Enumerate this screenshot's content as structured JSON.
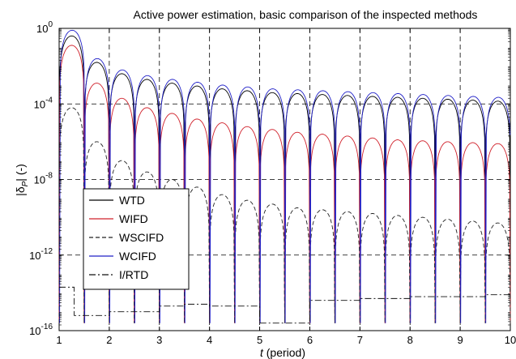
{
  "chart_data": {
    "type": "line",
    "title": "Active power estimation, basic comparison of the inspected methods",
    "xlabel_italic": "t",
    "xlabel_rest": " (period)",
    "ylabel_main": "|δ",
    "ylabel_sub": "P",
    "ylabel_rest": "| (-)",
    "xlim": [
      1,
      10
    ],
    "ylim_log10": [
      -16,
      0
    ],
    "yscale": "log",
    "grid": "dashed at major ticks",
    "x_ticks": [
      1,
      2,
      3,
      4,
      5,
      6,
      7,
      8,
      9,
      10
    ],
    "y_ticks": [
      {
        "exp": -16,
        "label_base": "10",
        "label_exp": "-16"
      },
      {
        "exp": -12,
        "label_base": "10",
        "label_exp": "-12"
      },
      {
        "exp": -8,
        "label_base": "10",
        "label_exp": "-8"
      },
      {
        "exp": -4,
        "label_base": "10",
        "label_exp": "-4"
      },
      {
        "exp": 0,
        "label_base": "10",
        "label_exp": "0"
      }
    ],
    "legend_placement": "lower-left",
    "series": [
      {
        "name": "WTD",
        "color": "#000000",
        "dash": "solid",
        "peaks_log10": [
          -0.4,
          -1.8,
          -2.4,
          -2.7,
          -2.9,
          -3.05,
          -3.2,
          -3.3,
          -3.4,
          -3.45,
          -3.5,
          -3.55,
          -3.6,
          -3.65,
          -3.7,
          -3.75,
          -3.8,
          -3.85
        ]
      },
      {
        "name": "WIFD",
        "color": "#d0202a",
        "dash": "solid",
        "peaks_log10": [
          -0.9,
          -2.9,
          -3.7,
          -4.2,
          -4.5,
          -4.8,
          -5.0,
          -5.2,
          -5.35,
          -5.5,
          -5.6,
          -5.7,
          -5.8,
          -5.9,
          -5.95,
          -6.0,
          -6.05,
          -6.1
        ]
      },
      {
        "name": "WSCIFD",
        "color": "#222222",
        "dash": "dashed",
        "peaks_log10": [
          -4.2,
          -6.0,
          -7.0,
          -7.6,
          -8.0,
          -8.4,
          -8.8,
          -9.1,
          -9.3,
          -9.5,
          -9.6,
          -9.7,
          -9.8,
          -9.9,
          -10.0,
          -10.1,
          -10.2,
          -10.3
        ]
      },
      {
        "name": "WCIFD",
        "color": "#2020c8",
        "dash": "solid",
        "peaks_log10": [
          -0.1,
          -1.6,
          -2.2,
          -2.5,
          -2.7,
          -2.85,
          -3.0,
          -3.1,
          -3.2,
          -3.25,
          -3.3,
          -3.35,
          -3.4,
          -3.45,
          -3.5,
          -3.55,
          -3.6,
          -3.65
        ]
      },
      {
        "name": "I/RTD",
        "color": "#111111",
        "dash": "dashdot",
        "steps": [
          [
            1.0,
            -13.7
          ],
          [
            1.3,
            -15.2
          ],
          [
            2.0,
            -15.0
          ],
          [
            3.0,
            -14.7
          ],
          [
            3.5,
            -14.6
          ],
          [
            4.0,
            -14.7
          ],
          [
            5.0,
            -15.6
          ],
          [
            6.0,
            -14.4
          ],
          [
            7.0,
            -14.3
          ],
          [
            8.0,
            -14.2
          ],
          [
            9.5,
            -14.1
          ],
          [
            10.0,
            -14.1
          ]
        ]
      }
    ]
  }
}
